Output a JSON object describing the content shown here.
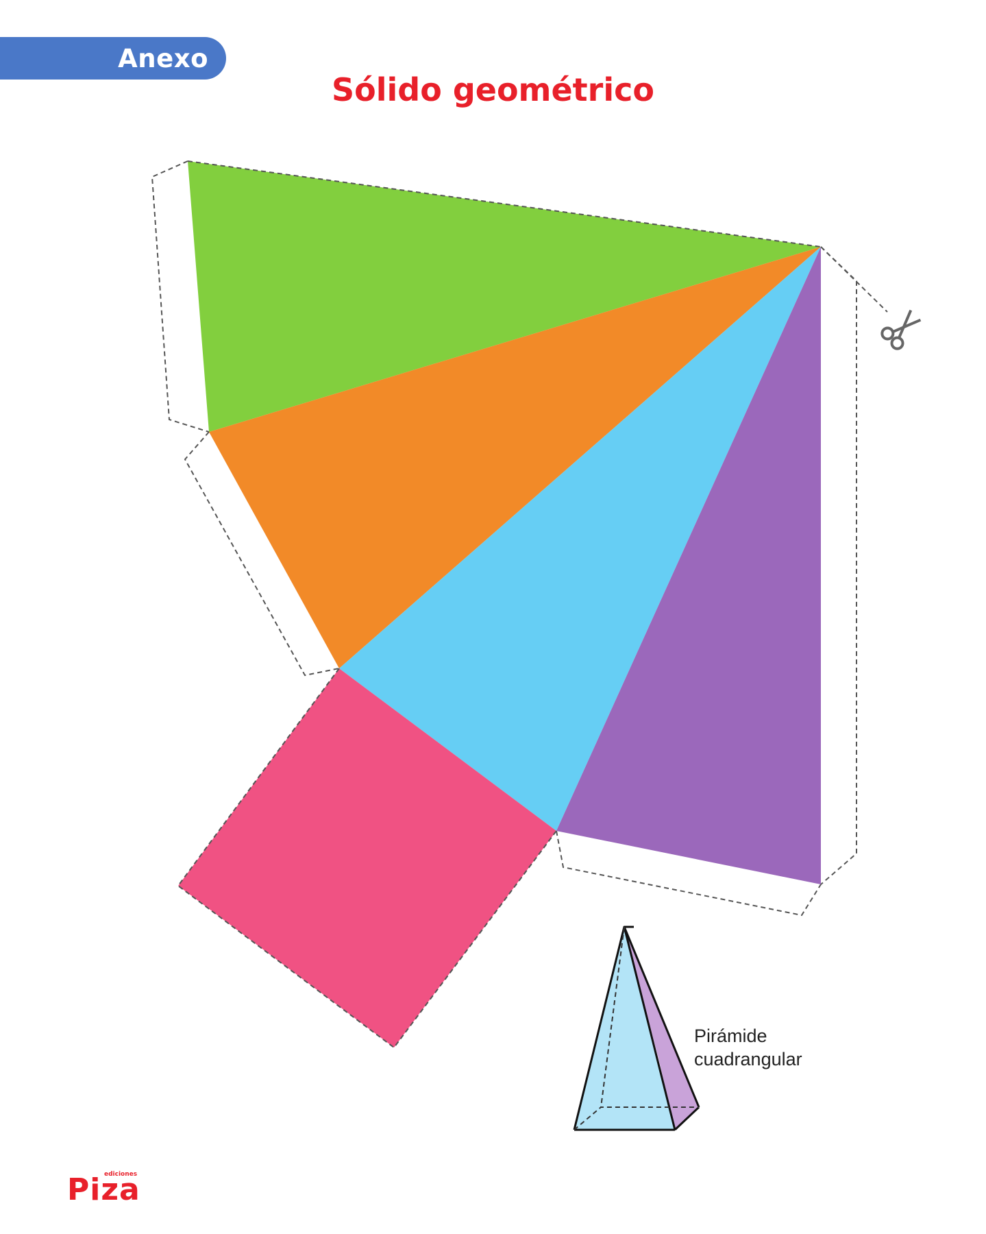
{
  "header": {
    "tab_label": "Anexo",
    "title": "Sólido geométrico"
  },
  "figure": {
    "caption_line1": "Pirámide",
    "caption_line2": "cuadrangular",
    "cut_icon": "scissors-icon"
  },
  "colors": {
    "tab": "#4a78c8",
    "title": "#e8202a",
    "face_green": "#82cf3e",
    "face_orange": "#f28a28",
    "face_blue": "#66cef4",
    "face_purple": "#9b68bb",
    "base_pink": "#f05283",
    "pyramid_front": "#b3e4f7",
    "pyramid_side": "#c9a3d9"
  },
  "footer": {
    "logo_sub": "ediciones",
    "logo_brand": "Piza"
  }
}
